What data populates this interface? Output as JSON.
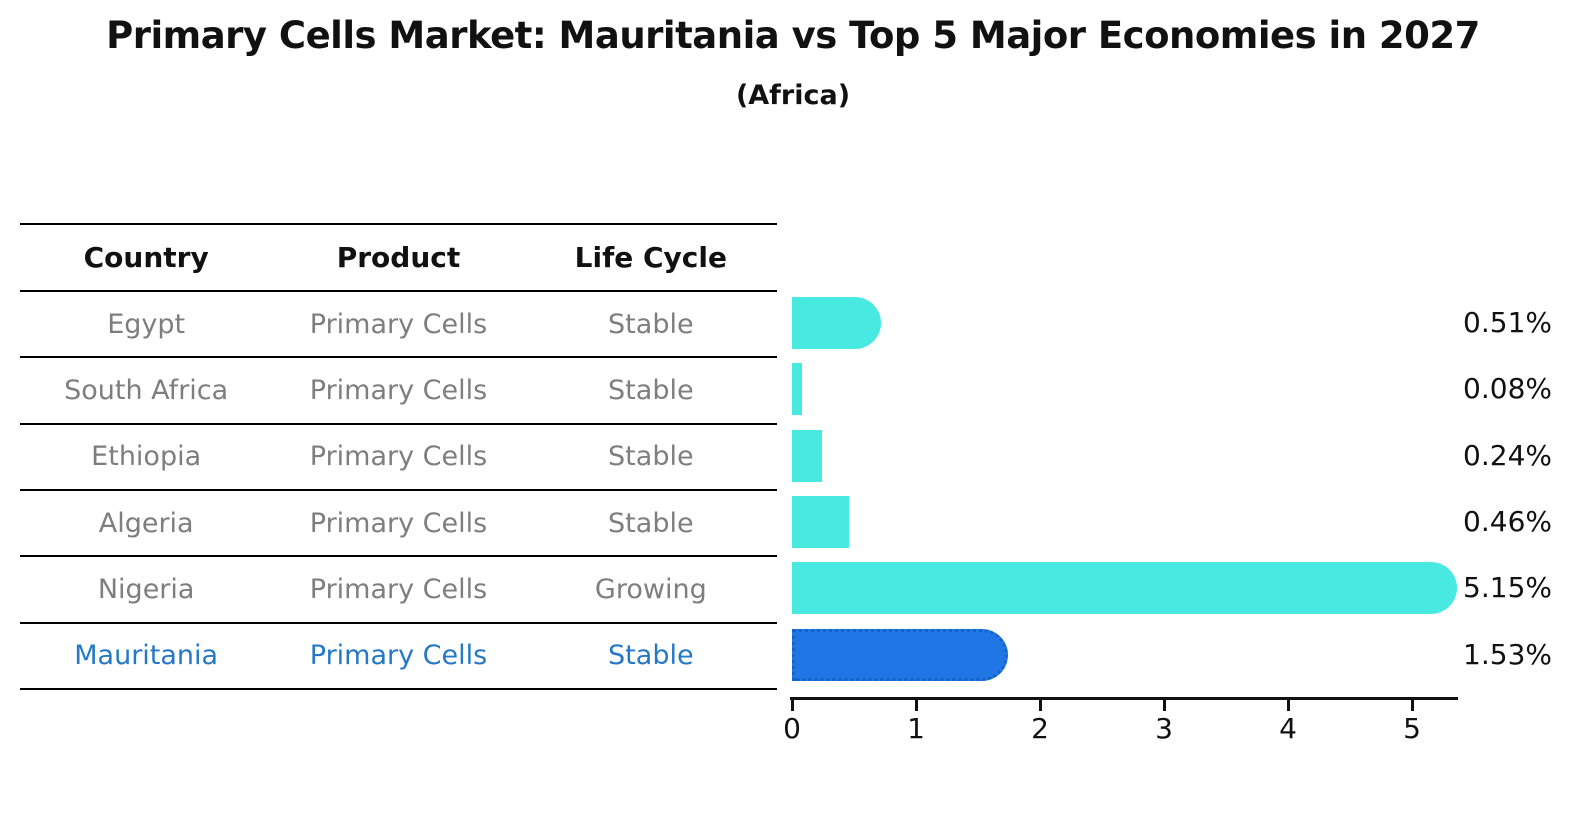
{
  "title": "Primary Cells Market: Mauritania vs Top 5 Major Economies in 2027",
  "subtitle": "(Africa)",
  "table": {
    "headers": [
      "Country",
      "Product",
      "Life Cycle"
    ],
    "rows": [
      {
        "country": "Egypt",
        "product": "Primary Cells",
        "life_cycle": "Stable",
        "highlighted": false
      },
      {
        "country": "South Africa",
        "product": "Primary Cells",
        "life_cycle": "Stable",
        "highlighted": false
      },
      {
        "country": "Ethiopia",
        "product": "Primary Cells",
        "life_cycle": "Stable",
        "highlighted": false
      },
      {
        "country": "Algeria",
        "product": "Primary Cells",
        "life_cycle": "Stable",
        "highlighted": false
      },
      {
        "country": "Nigeria",
        "product": "Primary Cells",
        "life_cycle": "Growing",
        "highlighted": false
      },
      {
        "country": "Mauritania",
        "product": "Primary Cells",
        "life_cycle": "Stable",
        "highlighted": true
      }
    ]
  },
  "chart_data": {
    "type": "bar",
    "orientation": "horizontal",
    "title": "Primary Cells Market: Mauritania vs Top 5 Major Economies in 2027",
    "subtitle": "(Africa)",
    "categories": [
      "Egypt",
      "South Africa",
      "Ethiopia",
      "Algeria",
      "Nigeria",
      "Mauritania"
    ],
    "values": [
      0.51,
      0.08,
      0.24,
      0.46,
      5.15,
      1.53
    ],
    "value_labels": [
      "0.51%",
      "0.08%",
      "0.24%",
      "0.46%",
      "5.15%",
      "1.53%"
    ],
    "unit": "%",
    "x_ticks": [
      0,
      1,
      2,
      3,
      4,
      5
    ],
    "xlim": [
      0,
      5.4
    ],
    "grid": false,
    "legend": "none",
    "highlight_category": "Mauritania"
  },
  "colors": {
    "bar_default": "#48e9e1",
    "bar_highlight": "#2176e6",
    "bar_highlight_border": "#1563c8",
    "highlight_text": "#2578c8",
    "table_text": "#7e7e7e",
    "heading_text": "#111111",
    "axis_line": "#111111"
  }
}
